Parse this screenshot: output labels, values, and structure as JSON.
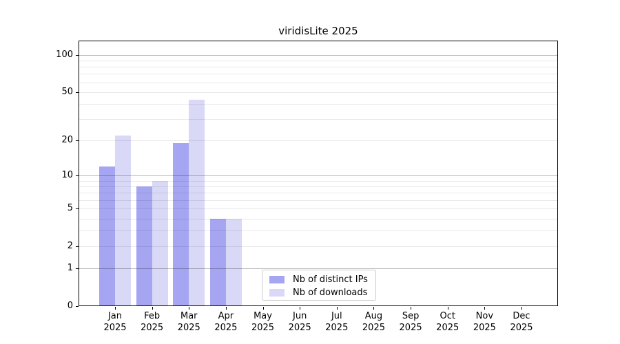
{
  "chart_data": {
    "type": "bar",
    "title": "viridisLite 2025",
    "year": "2025",
    "categories": [
      "Jan",
      "Feb",
      "Mar",
      "Apr",
      "May",
      "Jun",
      "Jul",
      "Aug",
      "Sep",
      "Oct",
      "Nov",
      "Dec"
    ],
    "series": [
      {
        "name": "Nb of distinct IPs",
        "color": "#a5a5f2",
        "values": [
          12,
          8,
          19,
          4,
          0,
          0,
          0,
          0,
          0,
          0,
          0,
          0
        ]
      },
      {
        "name": "Nb of downloads",
        "color": "#d9d9f7",
        "values": [
          22,
          9,
          43,
          4,
          0,
          0,
          0,
          0,
          0,
          0,
          0,
          0
        ]
      }
    ],
    "xlabel": "",
    "ylabel": "",
    "yscale": "log1p (position proportional to log10(1+x))",
    "yticks": [
      0,
      1,
      2,
      5,
      10,
      20,
      50,
      100
    ],
    "ylim": [
      0,
      130
    ],
    "grid": "horizontal, major ticks at 1/10/100 darker, minor at 2-9 and 20-90 lighter",
    "legend_position": "lower center inside plot",
    "axis_color": "#000000"
  }
}
